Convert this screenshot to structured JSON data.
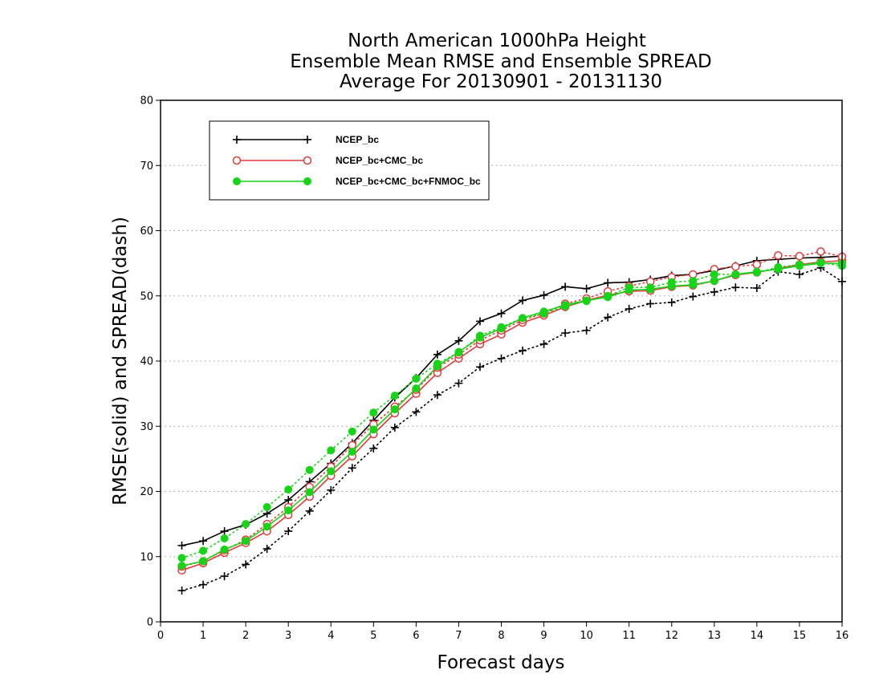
{
  "chart_data": {
    "type": "line",
    "title": [
      "North American 1000hPa Height",
      "Ensemble Mean RMSE and Ensemble SPREAD",
      "Average For 20130901 - 20131130"
    ],
    "xlabel": "Forecast days",
    "ylabel": "RMSE(solid) and SPREAD(dash)",
    "xlim": [
      0,
      16
    ],
    "ylim": [
      0,
      80
    ],
    "xticks": [
      0,
      1,
      2,
      3,
      4,
      5,
      6,
      7,
      8,
      9,
      10,
      11,
      12,
      13,
      14,
      15,
      16
    ],
    "yticks": [
      0,
      10,
      20,
      30,
      40,
      50,
      60,
      70,
      80
    ],
    "grid": "dotted horizontal",
    "legend_position": "top-left",
    "x": [
      0.5,
      1,
      1.5,
      2,
      2.5,
      3,
      3.5,
      4,
      4.5,
      5,
      5.5,
      6,
      6.5,
      7,
      7.5,
      8,
      8.5,
      9,
      9.5,
      10,
      10.5,
      11,
      11.5,
      12,
      12.5,
      13,
      13.5,
      14,
      14.5,
      15,
      15.5,
      16
    ],
    "series": [
      {
        "name": "NCEP_bc",
        "color": "#000000",
        "marker": "plus",
        "rmse": [
          11.7,
          12.4,
          13.9,
          14.9,
          16.6,
          18.7,
          21.5,
          24.3,
          27.4,
          30.9,
          34.4,
          37.4,
          41.0,
          43.1,
          46.1,
          47.3,
          49.3,
          50.1,
          51.4,
          51.1,
          52.0,
          52.1,
          52.5,
          53.1,
          53.3,
          53.9,
          54.6,
          55.4,
          55.6,
          55.8,
          55.9,
          56.1
        ],
        "spread": [
          4.8,
          5.7,
          7.0,
          8.8,
          11.2,
          13.9,
          17.0,
          20.2,
          23.6,
          26.6,
          29.8,
          32.2,
          34.8,
          36.6,
          39.1,
          40.4,
          41.6,
          42.6,
          44.3,
          44.7,
          46.7,
          48.0,
          48.8,
          49.0,
          49.9,
          50.6,
          51.3,
          51.2,
          53.7,
          53.3,
          54.3,
          52.2
        ]
      },
      {
        "name": "NCEP_bc+CMC_bc",
        "color": "#e03c3c",
        "marker": "open-circle",
        "rmse": [
          7.9,
          9.0,
          10.6,
          12.1,
          13.9,
          16.4,
          19.2,
          22.4,
          25.4,
          28.8,
          32.0,
          35.0,
          38.2,
          40.4,
          42.6,
          44.1,
          45.9,
          47.0,
          48.3,
          49.3,
          50.1,
          50.7,
          50.8,
          51.4,
          51.6,
          52.3,
          53.2,
          53.6,
          54.2,
          54.8,
          55.2,
          55.4
        ],
        "spread": [
          8.5,
          9.3,
          11.0,
          12.6,
          15.0,
          17.6,
          20.7,
          23.8,
          27.1,
          30.3,
          33.0,
          35.6,
          39.0,
          41.0,
          43.2,
          44.7,
          46.3,
          47.3,
          48.8,
          49.6,
          50.7,
          51.5,
          52.2,
          52.9,
          53.3,
          54.1,
          54.5,
          54.8,
          56.2,
          56.1,
          56.8,
          56.0
        ]
      },
      {
        "name": "NCEP_bc+CMC_bc+FNMOC_bc",
        "color": "#18d418",
        "marker": "filled-circle",
        "rmse": [
          8.6,
          9.3,
          11.1,
          12.4,
          14.6,
          17.1,
          19.9,
          23.1,
          26.1,
          29.5,
          32.6,
          35.8,
          39.2,
          41.4,
          43.6,
          45.0,
          46.6,
          47.6,
          48.6,
          49.3,
          49.8,
          50.9,
          51.0,
          51.5,
          51.7,
          52.3,
          53.3,
          53.7,
          54.1,
          54.6,
          55.0,
          55.0
        ],
        "spread": [
          9.8,
          10.9,
          12.8,
          15.0,
          17.6,
          20.3,
          23.3,
          26.3,
          29.2,
          32.1,
          34.7,
          37.3,
          39.6,
          41.3,
          43.9,
          45.2,
          46.6,
          47.3,
          48.4,
          49.2,
          50.0,
          51.3,
          51.3,
          52.1,
          52.3,
          53.3,
          53.3,
          53.6,
          54.4,
          54.8,
          55.1,
          54.6
        ]
      }
    ]
  }
}
